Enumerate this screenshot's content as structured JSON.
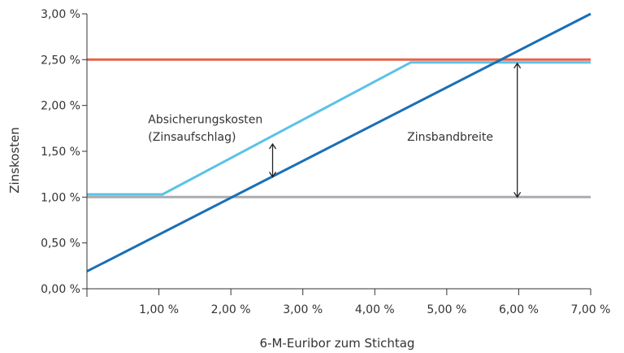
{
  "chart_data": {
    "type": "line",
    "title": "",
    "xlabel": "6-M-Euribor zum Stichtag",
    "ylabel": "Zinskosten",
    "xlim": [
      0,
      7
    ],
    "ylim": [
      0,
      3
    ],
    "x_ticks": [
      1,
      2,
      3,
      4,
      5,
      6,
      7
    ],
    "x_tick_labels": [
      "1,00 %",
      "2,00 %",
      "3,00 %",
      "4,00 %",
      "5,00 %",
      "6,00 %",
      "7,00 %"
    ],
    "y_ticks": [
      0,
      0.5,
      1,
      1.5,
      2,
      2.5,
      3
    ],
    "y_tick_labels": [
      "0,00 %",
      "0,50 %",
      "1,00 %",
      "1,50 %",
      "2,00 %",
      "2,50 %",
      "3,00 %"
    ],
    "grid": false,
    "series": [
      {
        "color": "#e8634a",
        "points": [
          [
            0,
            2.5
          ],
          [
            7,
            2.5
          ]
        ]
      },
      {
        "color": "#a9adb2",
        "points": [
          [
            0,
            1.0
          ],
          [
            7,
            1.0
          ]
        ]
      },
      {
        "color": "#5bc2e7",
        "points": [
          [
            0,
            1.03
          ],
          [
            1.05,
            1.03
          ],
          [
            4.5,
            2.47
          ],
          [
            7,
            2.47
          ]
        ]
      },
      {
        "color": "#1a6fb5",
        "points": [
          [
            0,
            0.19
          ],
          [
            7,
            3.0
          ]
        ]
      }
    ],
    "annotations": [
      {
        "text": "Absicherungskosten",
        "x": 0.85,
        "y": 1.85
      },
      {
        "text": "(Zinsaufschlag)",
        "x": 0.85,
        "y": 1.66
      },
      {
        "text": "Zinsbandbreite",
        "x": 4.45,
        "y": 1.66
      }
    ],
    "arrows": [
      {
        "x": 2.58,
        "y1": 1.22,
        "y2": 1.58
      },
      {
        "x": 5.98,
        "y1": 1.0,
        "y2": 2.46
      }
    ]
  }
}
